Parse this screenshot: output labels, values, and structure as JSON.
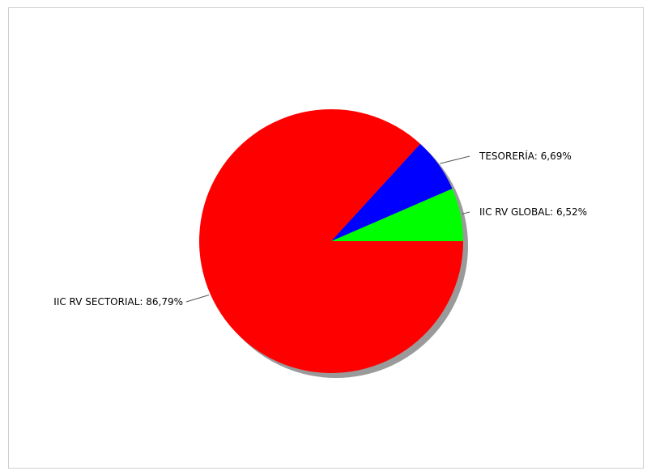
{
  "chart_data": {
    "type": "pie",
    "slices": [
      {
        "label": "IIC RV GLOBAL: 6,52%",
        "value": 6.52,
        "color": "#00ff00"
      },
      {
        "label": "TESORERÍA: 6,69%",
        "value": 6.69,
        "color": "#0000ff"
      },
      {
        "label": "IIC RV SECTORIAL: 86,79%",
        "value": 86.79,
        "color": "#ff0000"
      }
    ],
    "shadow": true,
    "border_color": "#cfcfcf"
  }
}
